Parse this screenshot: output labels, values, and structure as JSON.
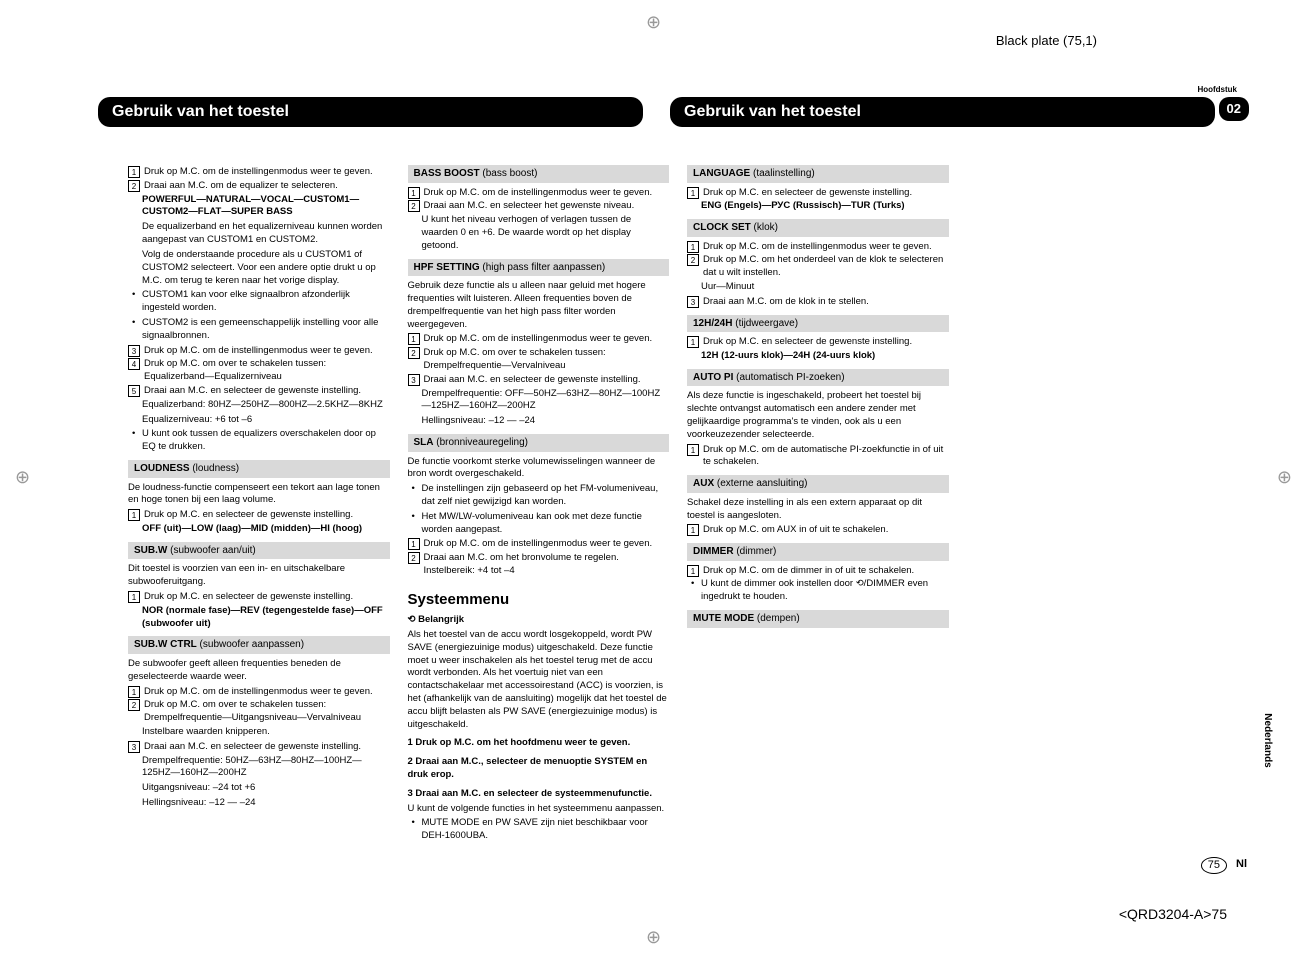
{
  "meta": {
    "plate": "Black plate (75,1)",
    "hoofdstuk": "Hoofdstuk",
    "chapter": "02",
    "title_left": "Gebruik van het toestel",
    "title_right": "Gebruik van het toestel",
    "footer_code": "<QRD3204-A>75",
    "lang_side": "Nederlands",
    "nl": "Nl",
    "page": "75"
  },
  "col1": {
    "s1": "Druk op M.C. om de instellingenmodus weer te geven.",
    "s2": "Draai aan M.C. om de equalizer te selecteren.",
    "s2b": "POWERFUL—NATURAL—VOCAL—CUSTOM1—CUSTOM2—FLAT—SUPER BASS",
    "s2c": "De equalizerband en het equalizerniveau kunnen worden aangepast van CUSTOM1 en CUSTOM2.",
    "s2d": "Volg de onderstaande procedure als u CUSTOM1 of CUSTOM2 selecteert. Voor een andere optie drukt u op M.C. om terug te keren naar het vorige display.",
    "b1": "CUSTOM1 kan voor elke signaalbron afzonderlijk ingesteld worden.",
    "b2": "CUSTOM2 is een gemeenschappelijk instelling voor alle signaalbronnen.",
    "s3": "Druk op M.C. om de instellingenmodus weer te geven.",
    "s4": "Druk op M.C. om over te schakelen tussen: Equalizerband—Equalizerniveau",
    "s5": "Draai aan M.C. en selecteer de gewenste instelling.",
    "s5b": "Equalizerband: 80HZ—250HZ—800HZ—2.5KHZ—8KHZ",
    "s5c": "Equalizerniveau: +6 tot –6",
    "b3": "U kunt ook tussen de equalizers overschakelen door op EQ te drukken.",
    "loud_head": "LOUDNESS (loudness)",
    "loud1": "De loudness-functie compenseert een tekort aan lage tonen en hoge tonen bij een laag volume.",
    "loud_s1": "Druk op M.C. en selecteer de gewenste instelling.",
    "loud_s1b": "OFF (uit)—LOW (laag)—MID (midden)—HI (hoog)",
    "subw_head": "SUB.W (subwoofer aan/uit)",
    "subw1": "Dit toestel is voorzien van een in- en uitschakelbare subwooferuitgang.",
    "subw_s1": "Druk op M.C. en selecteer de gewenste instelling.",
    "subw_s1b": "NOR (normale fase)—REV (tegengestelde fase)—OFF (subwoofer uit)"
  },
  "col2": {
    "subwc_head": "SUB.W CTRL (subwoofer aanpassen)",
    "subwc1": "De subwoofer geeft alleen frequenties beneden de geselecteerde waarde weer.",
    "subwc_s1": "Druk op M.C. om de instellingenmodus weer te geven.",
    "subwc_s2": "Druk op M.C. om over te schakelen tussen: Drempelfrequentie—Uitgangsniveau—Vervalniveau",
    "subwc_s2b": "Instelbare waarden knipperen.",
    "subwc_s3": "Draai aan M.C. en selecteer de gewenste instelling.",
    "subwc_s3b": "Drempelfrequentie: 50HZ—63HZ—80HZ—100HZ—125HZ—160HZ—200HZ",
    "subwc_s3c": "Uitgangsniveau: –24 tot +6",
    "subwc_s3d": "Hellingsniveau: –12 — –24",
    "bass_head": "BASS BOOST (bass boost)",
    "bass_s1": "Druk op M.C. om de instellingenmodus weer te geven.",
    "bass_s2": "Draai aan M.C. en selecteer het gewenste niveau.",
    "bass_s2b": "U kunt het niveau verhogen of verlagen tussen de waarden 0 en +6. De waarde wordt op het display getoond.",
    "hpf_head": "HPF SETTING (high pass filter aanpassen)",
    "hpf1": "Gebruik deze functie als u alleen naar geluid met hogere frequenties wilt luisteren. Alleen frequenties boven de drempelfrequentie van het high pass filter worden weergegeven.",
    "hpf_s1": "Druk op M.C. om de instellingenmodus weer te geven.",
    "hpf_s2": "Druk op M.C. om over te schakelen tussen: Drempelfrequentie—Vervalniveau",
    "hpf_s3": "Draai aan M.C. en selecteer de gewenste instelling.",
    "hpf_s3b": "Drempelfrequentie: OFF—50HZ—63HZ—80HZ—100HZ—125HZ—160HZ—200HZ",
    "hpf_s3c": "Hellingsniveau: –12 — –24"
  },
  "col3": {
    "sla_head": "SLA (bronniveauregeling)",
    "sla1": "De functie voorkomt sterke volumewisselingen wanneer de bron wordt overgeschakeld.",
    "sla_b1": "De instellingen zijn gebaseerd op het FM-volumeniveau, dat zelf niet gewijzigd kan worden.",
    "sla_b2": "Het MW/LW-volumeniveau kan ook met deze functie worden aangepast.",
    "sla_s1": "Druk op M.C. om de instellingenmodus weer te geven.",
    "sla_s2": "Draai aan M.C. om het bronvolume te regelen. Instelbereik: +4 tot –4",
    "sys_title": "Systeemmenu",
    "belangrijk": "Belangrijk",
    "sys1": "Als het toestel van de accu wordt losgekoppeld, wordt PW SAVE (energiezuinige modus) uitgeschakeld. Deze functie moet u weer inschakelen als het toestel terug met de accu wordt verbonden. Als het voertuig niet van een contactschakelaar met accessoirestand (ACC) is voorzien, is het (afhankelijk van de aansluiting) mogelijk dat het toestel de accu blijft belasten als PW SAVE (energiezuinige modus) is uitgeschakeld.",
    "bs1": "1   Druk op M.C. om het hoofdmenu weer te geven.",
    "bs2": "2   Draai aan M.C., selecteer de menuoptie SYSTEM en druk erop.",
    "bs3": "3   Draai aan M.C. en selecteer de systeemmenufunctie.",
    "bs3b": "U kunt de volgende functies in het systeemmenu aanpassen.",
    "bs3c": "MUTE MODE en PW SAVE zijn niet beschikbaar voor DEH-1600UBA."
  },
  "col4": {
    "lang_head": "LANGUAGE (taalinstelling)",
    "lang_s1": "Druk op M.C. en selecteer de gewenste instelling.",
    "lang_s1b": "ENG (Engels)—РУС (Russisch)—TUR (Turks)",
    "clock_head": "CLOCK SET (klok)",
    "clock_s1": "Druk op M.C. om de instellingenmodus weer te geven.",
    "clock_s2": "Druk op M.C. om het onderdeel van de klok te selecteren dat u wilt instellen.",
    "clock_s2b": "Uur—Minuut",
    "clock_s3": "Draai aan M.C. om de klok in te stellen.",
    "h12_head": "12H/24H (tijdweergave)",
    "h12_s1": "Druk op M.C. en selecteer de gewenste instelling.",
    "h12_s1b": "12H (12-uurs klok)—24H (24-uurs klok)",
    "auto_head": "AUTO PI (automatisch PI-zoeken)",
    "auto1": "Als deze functie is ingeschakeld, probeert het toestel bij slechte ontvangst automatisch een andere zender met gelijkaardige programma's te vinden, ook als u een voorkeuzezender selecteerde.",
    "auto_s1": "Druk op M.C. om de automatische PI-zoekfunctie in of uit te schakelen.",
    "aux_head": "AUX (externe aansluiting)",
    "aux1": "Schakel deze instelling in als een extern apparaat op dit toestel is aangesloten.",
    "aux_s1": "Druk op M.C. om AUX in of uit te schakelen.",
    "dim_head": "DIMMER (dimmer)",
    "dim_s1": "Druk op M.C. om de dimmer in of uit te schakelen.",
    "dim_b1": "U kunt de dimmer ook instellen door ⟲/DIMMER even ingedrukt te houden.",
    "mute_head": "MUTE MODE (dempen)"
  }
}
